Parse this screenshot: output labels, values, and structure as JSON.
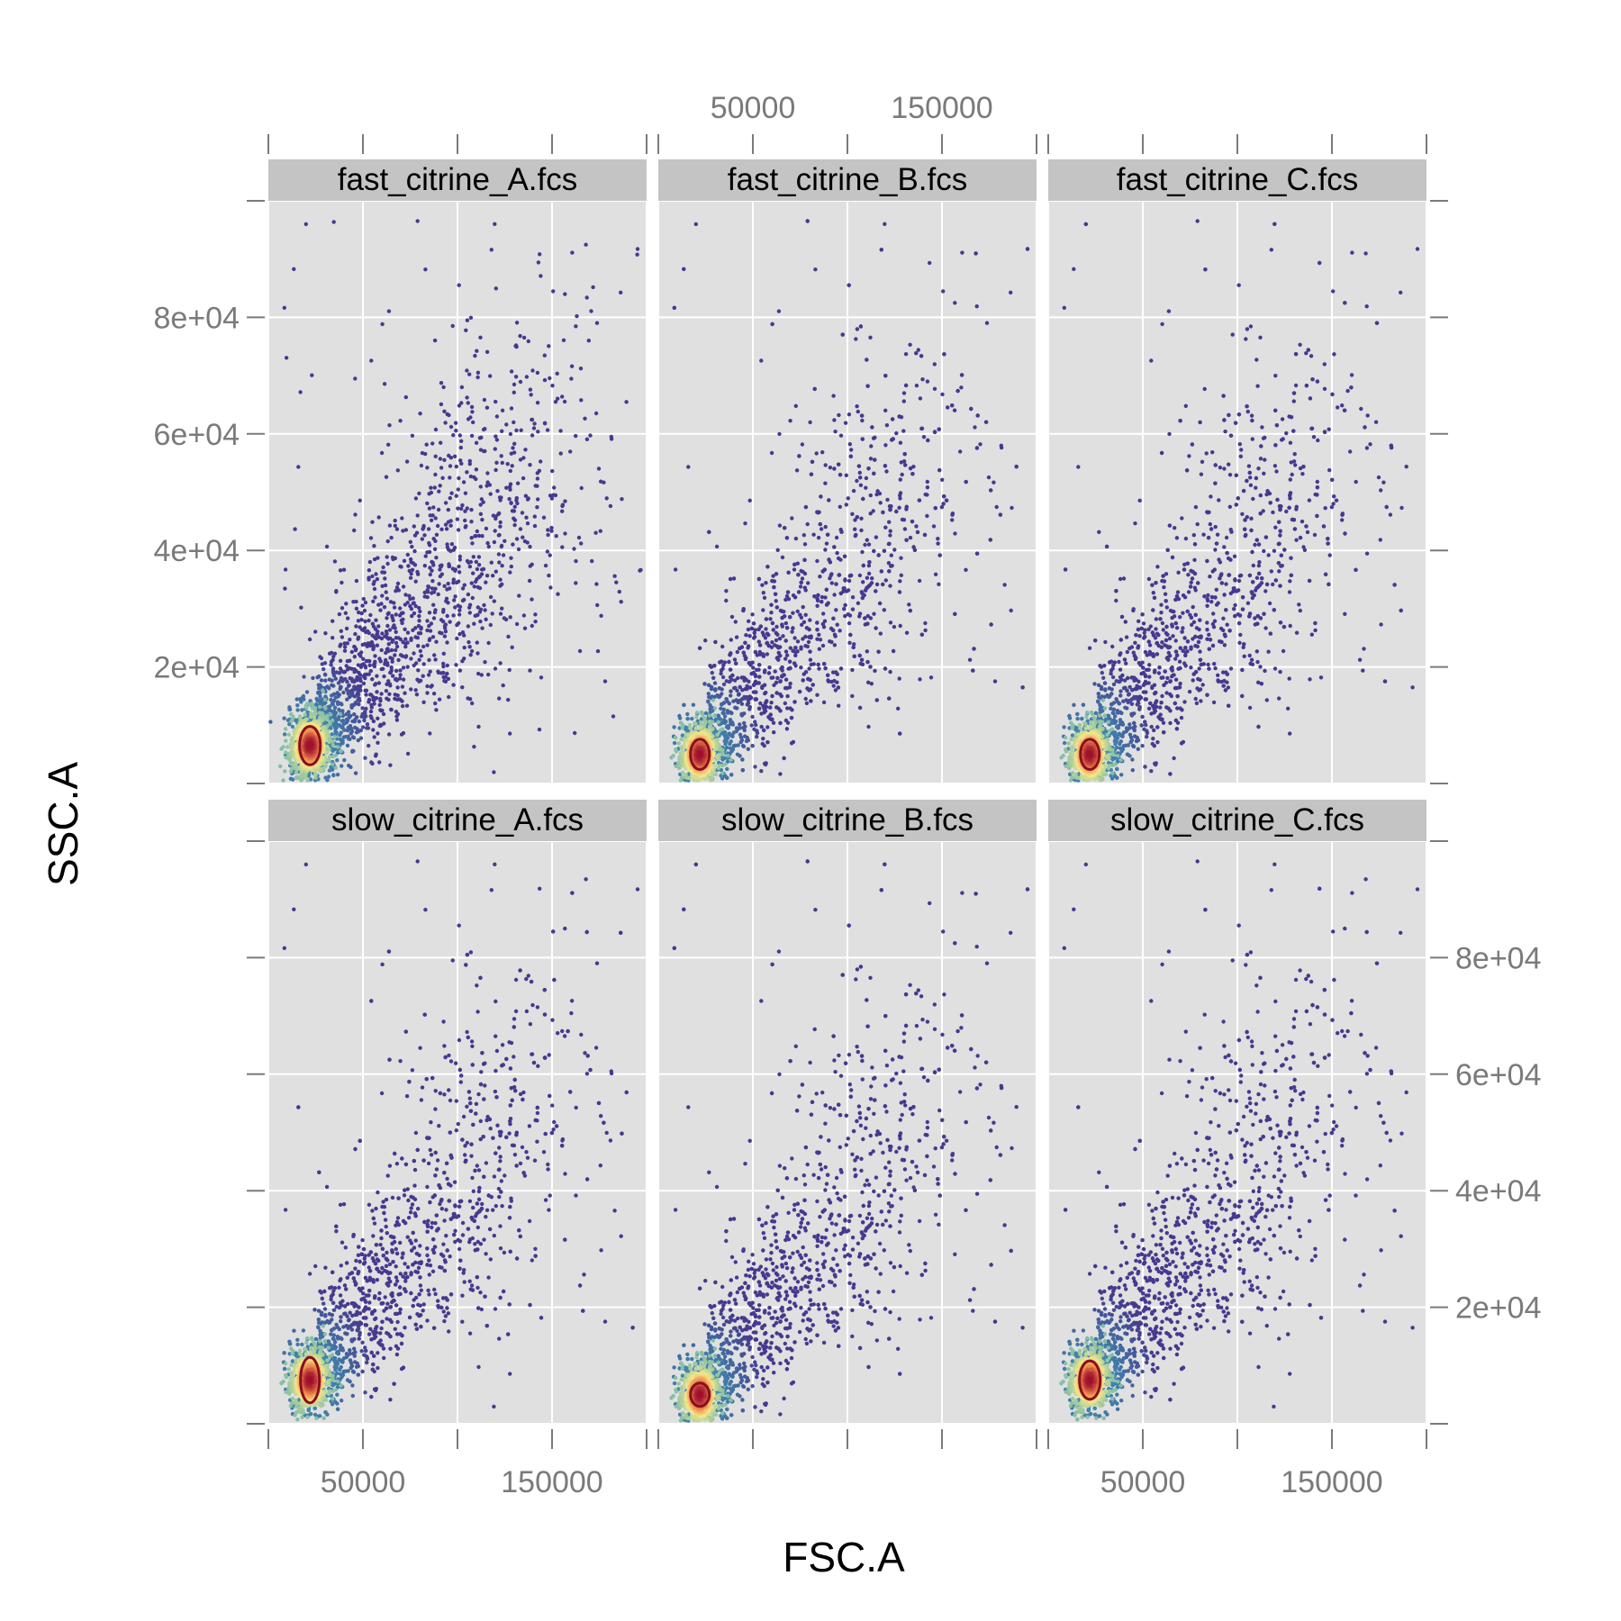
{
  "chart_data": {
    "type": "scatter",
    "style": "faceted density-colored scatter plots with gating ellipses",
    "xlabel": "FSC.A",
    "ylabel": "SSC.A",
    "xlim": [
      0,
      200000
    ],
    "ylim": [
      0,
      100000
    ],
    "x_ticks": [
      0,
      50000,
      100000,
      150000,
      200000
    ],
    "x_tick_labels": {
      "50000": "50000",
      "150000": "150000"
    },
    "y_ticks": [
      0,
      20000,
      40000,
      60000,
      80000,
      100000
    ],
    "y_tick_labels": {
      "20000": "2e+04",
      "40000": "4e+04",
      "60000": "6e+04",
      "80000": "8e+04"
    },
    "grid": true,
    "colors": {
      "panel_bg": "#e0e0e0",
      "strip_bg": "#c4c4c4",
      "grid": "#ffffff",
      "density_low": "#46398f",
      "density_mid": "#3ea3b8",
      "density_high_mid": "#f4e98a",
      "density_high": "#9e0f2e",
      "gate_ellipse": "#8b0d1f"
    },
    "panels": [
      {
        "name": "fast_citrine_A.fcs",
        "row": 0,
        "col": 0,
        "core": [
          22000,
          6500
        ],
        "ellipse": {
          "cx": 22000,
          "cy": 6500,
          "rx": 5500,
          "ry": 3300
        },
        "spread": 1.0,
        "x_labels": "top-none",
        "y_labels": "left"
      },
      {
        "name": "fast_citrine_B.fcs",
        "row": 0,
        "col": 1,
        "core": [
          22000,
          5000
        ],
        "ellipse": {
          "cx": 22000,
          "cy": 5000,
          "rx": 5000,
          "ry": 2600
        },
        "spread": 1.0,
        "x_labels": "top",
        "y_labels": "none"
      },
      {
        "name": "fast_citrine_C.fcs",
        "row": 0,
        "col": 2,
        "core": [
          22000,
          5000
        ],
        "ellipse": {
          "cx": 22000,
          "cy": 5000,
          "rx": 5000,
          "ry": 2600
        },
        "spread": 1.0,
        "x_labels": "top-none",
        "y_labels": "none"
      },
      {
        "name": "slow_citrine_A.fcs",
        "row": 1,
        "col": 0,
        "core": [
          22000,
          7500
        ],
        "ellipse": {
          "cx": 22000,
          "cy": 7500,
          "rx": 5000,
          "ry": 3900
        },
        "spread": 1.0,
        "x_labels": "bottom",
        "y_labels": "none"
      },
      {
        "name": "slow_citrine_B.fcs",
        "row": 1,
        "col": 1,
        "core": [
          22000,
          5000
        ],
        "ellipse": {
          "cx": 22000,
          "cy": 5000,
          "rx": 5000,
          "ry": 2000
        },
        "spread": 1.0,
        "x_labels": "none",
        "y_labels": "none"
      },
      {
        "name": "slow_citrine_C.fcs",
        "row": 1,
        "col": 2,
        "core": [
          22000,
          7500
        ],
        "ellipse": {
          "cx": 22000,
          "cy": 7500,
          "rx": 5500,
          "ry": 3300
        },
        "spread": 1.0,
        "x_labels": "bottom",
        "y_labels": "right"
      }
    ]
  }
}
